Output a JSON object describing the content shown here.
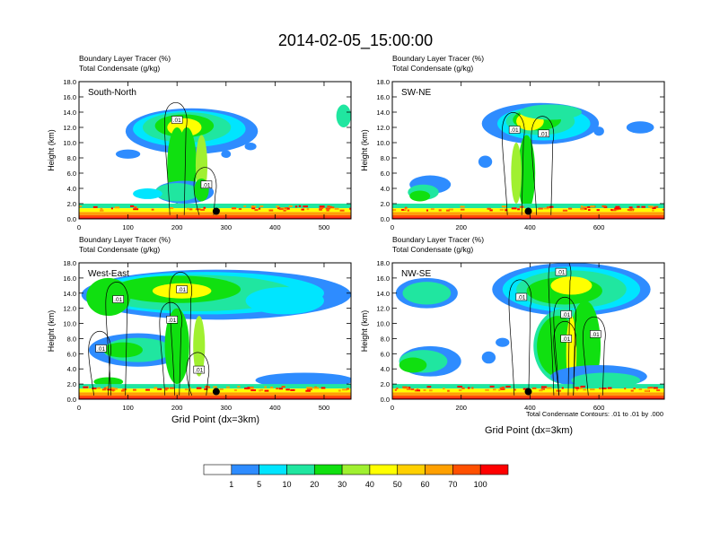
{
  "title": "2014-02-05_15:00:00",
  "panel_subtitle_line1": "Boundary Layer Tracer   (%)",
  "panel_subtitle_line2": "Total Condensate   (g/kg)",
  "ylabel": "Height (km)",
  "xlabel": "Grid Point (dx=3km)",
  "contour_note": "Total Condensate Contours: .01 to .01 by .000",
  "contour_label": ".01",
  "chart_data": [
    {
      "type": "heatmap",
      "panel": "South-North",
      "xlim": [
        0,
        555
      ],
      "ylim": [
        0,
        18
      ],
      "xticks": [
        0,
        100,
        200,
        300,
        400,
        500
      ],
      "yticks": [
        "0.0",
        "2.0",
        "4.0",
        "6.0",
        "8.0",
        "10.0",
        "12.0",
        "14.0",
        "16.0",
        "18.0"
      ],
      "marker": {
        "x": 280,
        "y": 1.0
      },
      "contour_label_positions": [
        {
          "x": 200,
          "y": 13.0
        },
        {
          "x": 260,
          "y": 4.5
        }
      ]
    },
    {
      "type": "heatmap",
      "panel": "SW-NE",
      "xlim": [
        0,
        790
      ],
      "ylim": [
        0,
        18
      ],
      "xticks": [
        0,
        200,
        400,
        600
      ],
      "yticks": [
        "0.0",
        "2.0",
        "4.0",
        "6.0",
        "8.0",
        "10.0",
        "12.0",
        "14.0",
        "16.0",
        "18.0"
      ],
      "marker": {
        "x": 395,
        "y": 1.0
      },
      "contour_label_positions": [
        {
          "x": 355,
          "y": 11.7
        },
        {
          "x": 440,
          "y": 11.2
        }
      ]
    },
    {
      "type": "heatmap",
      "panel": "West-East",
      "xlim": [
        0,
        555
      ],
      "ylim": [
        0,
        18
      ],
      "xticks": [
        0,
        100,
        200,
        300,
        400,
        500
      ],
      "yticks": [
        "0.0",
        "2.0",
        "4.0",
        "6.0",
        "8.0",
        "10.0",
        "12.0",
        "14.0",
        "16.0",
        "18.0"
      ],
      "marker": {
        "x": 280,
        "y": 1.0
      },
      "contour_label_positions": [
        {
          "x": 80,
          "y": 13.2
        },
        {
          "x": 210,
          "y": 14.5
        },
        {
          "x": 190,
          "y": 10.5
        },
        {
          "x": 45,
          "y": 6.7
        },
        {
          "x": 245,
          "y": 3.9
        }
      ]
    },
    {
      "type": "heatmap",
      "panel": "NW-SE",
      "xlim": [
        0,
        790
      ],
      "ylim": [
        0,
        18
      ],
      "xticks": [
        0,
        200,
        400,
        600
      ],
      "yticks": [
        "0.0",
        "2.0",
        "4.0",
        "6.0",
        "8.0",
        "10.0",
        "12.0",
        "14.0",
        "16.0",
        "18.0"
      ],
      "marker": {
        "x": 395,
        "y": 1.0
      },
      "contour_label_positions": [
        {
          "x": 490,
          "y": 16.8
        },
        {
          "x": 375,
          "y": 13.5
        },
        {
          "x": 505,
          "y": 11.2
        },
        {
          "x": 505,
          "y": 8.0
        },
        {
          "x": 590,
          "y": 8.6
        }
      ]
    }
  ],
  "colorbar": {
    "labels": [
      "1",
      "5",
      "10",
      "20",
      "30",
      "40",
      "50",
      "60",
      "70",
      "100"
    ],
    "colors": [
      "#ffffff",
      "#2e8cff",
      "#00e5ff",
      "#20e6a0",
      "#10e010",
      "#a0f030",
      "#ffff00",
      "#ffd000",
      "#ffa000",
      "#ff5000",
      "#ff0000"
    ]
  }
}
